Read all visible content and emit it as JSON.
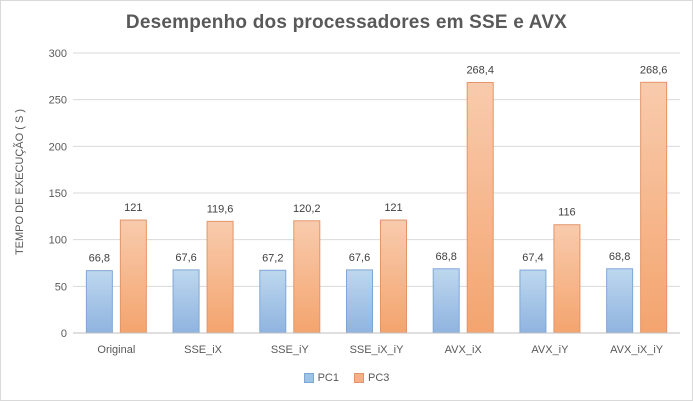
{
  "chart_data": {
    "type": "bar",
    "title": "Desempenho  dos processadores  em SSE e AVX",
    "xlabel": "",
    "ylabel": "TEMPO DE EXECUÇÃO ( S )",
    "ylim": [
      0,
      300
    ],
    "yticks": [
      "0",
      "50",
      "100",
      "150",
      "200",
      "250",
      "300"
    ],
    "grid": true,
    "legend_position": "bottom",
    "categories": [
      "Original",
      "SSE_iX",
      "SSE_iY",
      "SSE_iX_iY",
      "AVX_iX",
      "AVX_iY",
      "AVX_iX_iY"
    ],
    "series": [
      {
        "name": "PC1",
        "values": [
          66.8,
          67.6,
          67.2,
          67.6,
          68.8,
          67.4,
          68.8
        ],
        "labels": [
          "66,8",
          "67,6",
          "67,2",
          "67,6",
          "68,8",
          "67,4",
          "68,8"
        ],
        "color": "#9dc3e6"
      },
      {
        "name": "PC3",
        "values": [
          121,
          119.6,
          120.2,
          121,
          268.4,
          116,
          268.6
        ],
        "labels": [
          "121",
          "119,6",
          "120,2",
          "121",
          "268,4",
          "116",
          "268,6"
        ],
        "color": "#f4b183"
      }
    ]
  }
}
